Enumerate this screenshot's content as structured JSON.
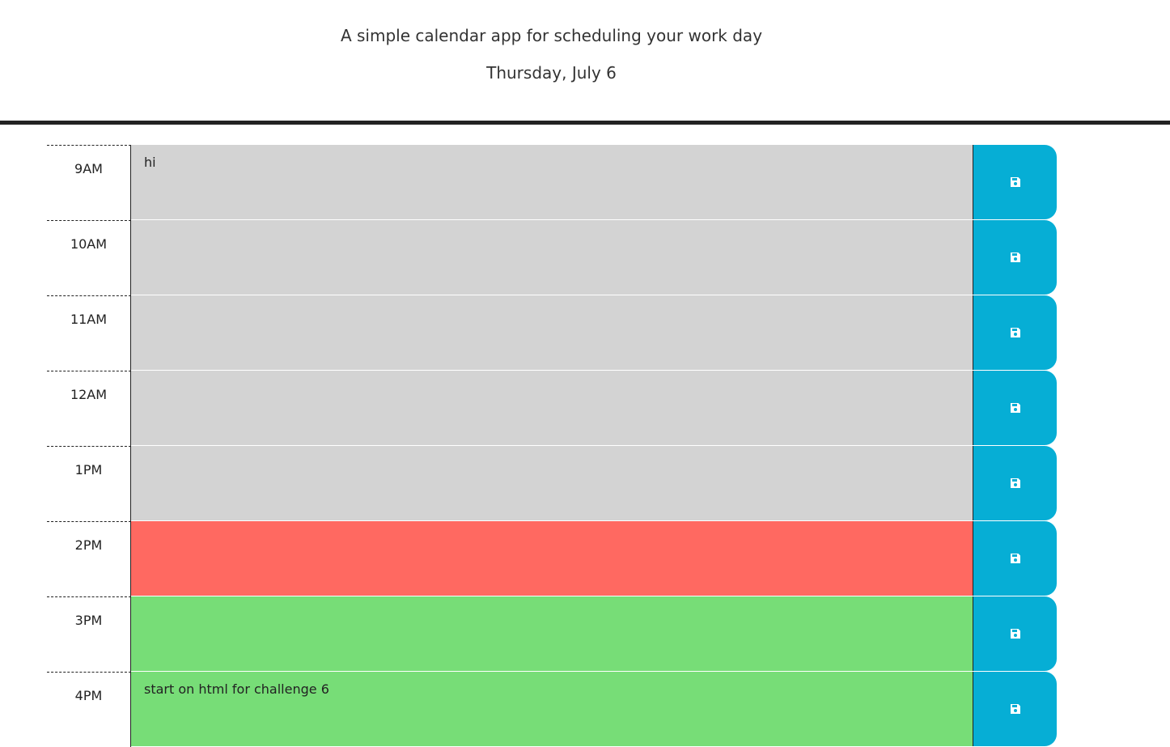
{
  "header": {
    "subtitle": "A simple calendar app for scheduling your work day",
    "current_day": "Thursday, July 6"
  },
  "colors": {
    "past": "#d3d3d3",
    "present": "#ff6961",
    "future": "#77dd77",
    "save_button": "#06aed5"
  },
  "save_icon": "floppy-disk-icon",
  "rows": [
    {
      "hour": "9AM",
      "text": "hi",
      "state": "past"
    },
    {
      "hour": "10AM",
      "text": "",
      "state": "past"
    },
    {
      "hour": "11AM",
      "text": "",
      "state": "past"
    },
    {
      "hour": "12AM",
      "text": "",
      "state": "past"
    },
    {
      "hour": "1PM",
      "text": "",
      "state": "past"
    },
    {
      "hour": "2PM",
      "text": "",
      "state": "present"
    },
    {
      "hour": "3PM",
      "text": "",
      "state": "future"
    },
    {
      "hour": "4PM",
      "text": "start on html for challenge 6",
      "state": "future"
    }
  ]
}
